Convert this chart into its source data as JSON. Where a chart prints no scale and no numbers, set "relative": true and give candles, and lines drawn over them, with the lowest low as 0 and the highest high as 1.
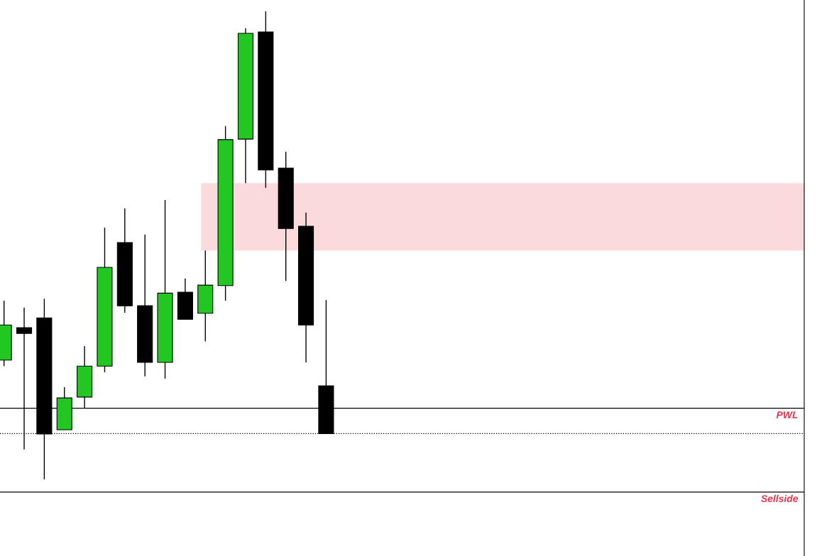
{
  "chart_data": {
    "type": "candlestick",
    "relative": true,
    "categories": [
      null,
      null,
      null,
      null,
      null,
      null,
      null,
      null,
      null,
      null,
      null,
      null,
      null,
      null,
      null,
      null,
      null,
      null,
      null,
      null,
      null,
      null,
      null,
      null,
      null,
      null,
      null,
      null,
      null,
      null,
      null,
      null,
      null,
      null,
      null,
      null,
      null,
      null,
      null,
      null
    ],
    "ohlc": [
      [
        0.255,
        0.382,
        0.242,
        0.33
      ],
      [
        0.324,
        0.367,
        0.064,
        0.312
      ],
      [
        0.345,
        0.386,
        0,
        0.097
      ],
      [
        0.106,
        0.197,
        0.106,
        0.174
      ],
      [
        0.176,
        0.285,
        0.152,
        0.242
      ],
      [
        0.242,
        0.538,
        0.229,
        0.453
      ],
      [
        0.506,
        0.579,
        0.356,
        0.371
      ],
      [
        0.371,
        0.523,
        0.22,
        0.25
      ],
      [
        0.25,
        0.597,
        0.215,
        0.398
      ],
      [
        0.4,
        0.429,
        0.342,
        0.342
      ],
      [
        0.355,
        0.489,
        0.295,
        0.415
      ],
      [
        0.414,
        0.755,
        0.382,
        0.726
      ],
      [
        0.727,
        0.964,
        0.633,
        0.953
      ],
      [
        0.956,
        1,
        0.623,
        0.661
      ],
      [
        0.665,
        0.7,
        0.424,
        0.536
      ],
      [
        0.541,
        0.57,
        0.25,
        0.33
      ],
      [
        0.2,
        0.383,
        0.098,
        0.098
      ],
      null,
      null,
      null,
      null,
      null,
      null,
      null,
      null,
      null,
      null,
      null,
      null,
      null,
      null,
      null,
      null,
      null,
      null,
      null,
      null,
      null,
      null,
      null
    ],
    "colors": [
      "#22c722",
      "#000000",
      "#000000",
      "#22c722",
      "#22c722",
      "#22c722",
      "#000000",
      "#000000",
      "#22c722",
      "#000000",
      "#22c722",
      "#22c722",
      "#22c722",
      "#000000",
      "#000000",
      "#000000",
      "#000000",
      null,
      null,
      null,
      null,
      null,
      null,
      null,
      null,
      null,
      null,
      null,
      null,
      null,
      null,
      null,
      null,
      null,
      null,
      null,
      null,
      null,
      null,
      null
    ],
    "bands": [
      {
        "axis": "y",
        "from": 0.489,
        "to": 0.633,
        "color": "#fadadd"
      }
    ],
    "ref_lines": [
      {
        "axis": "y",
        "value": 0.152,
        "label": "PWL",
        "color": "#000000",
        "line_style": "solid"
      },
      {
        "axis": "y",
        "value": -0.027,
        "label": "Sellside",
        "color": "#000000",
        "line_style": "solid"
      },
      {
        "axis": "y",
        "value": 0.098,
        "color": "#000000",
        "line_style": "dotted"
      }
    ],
    "grid": false,
    "legend": false
  }
}
